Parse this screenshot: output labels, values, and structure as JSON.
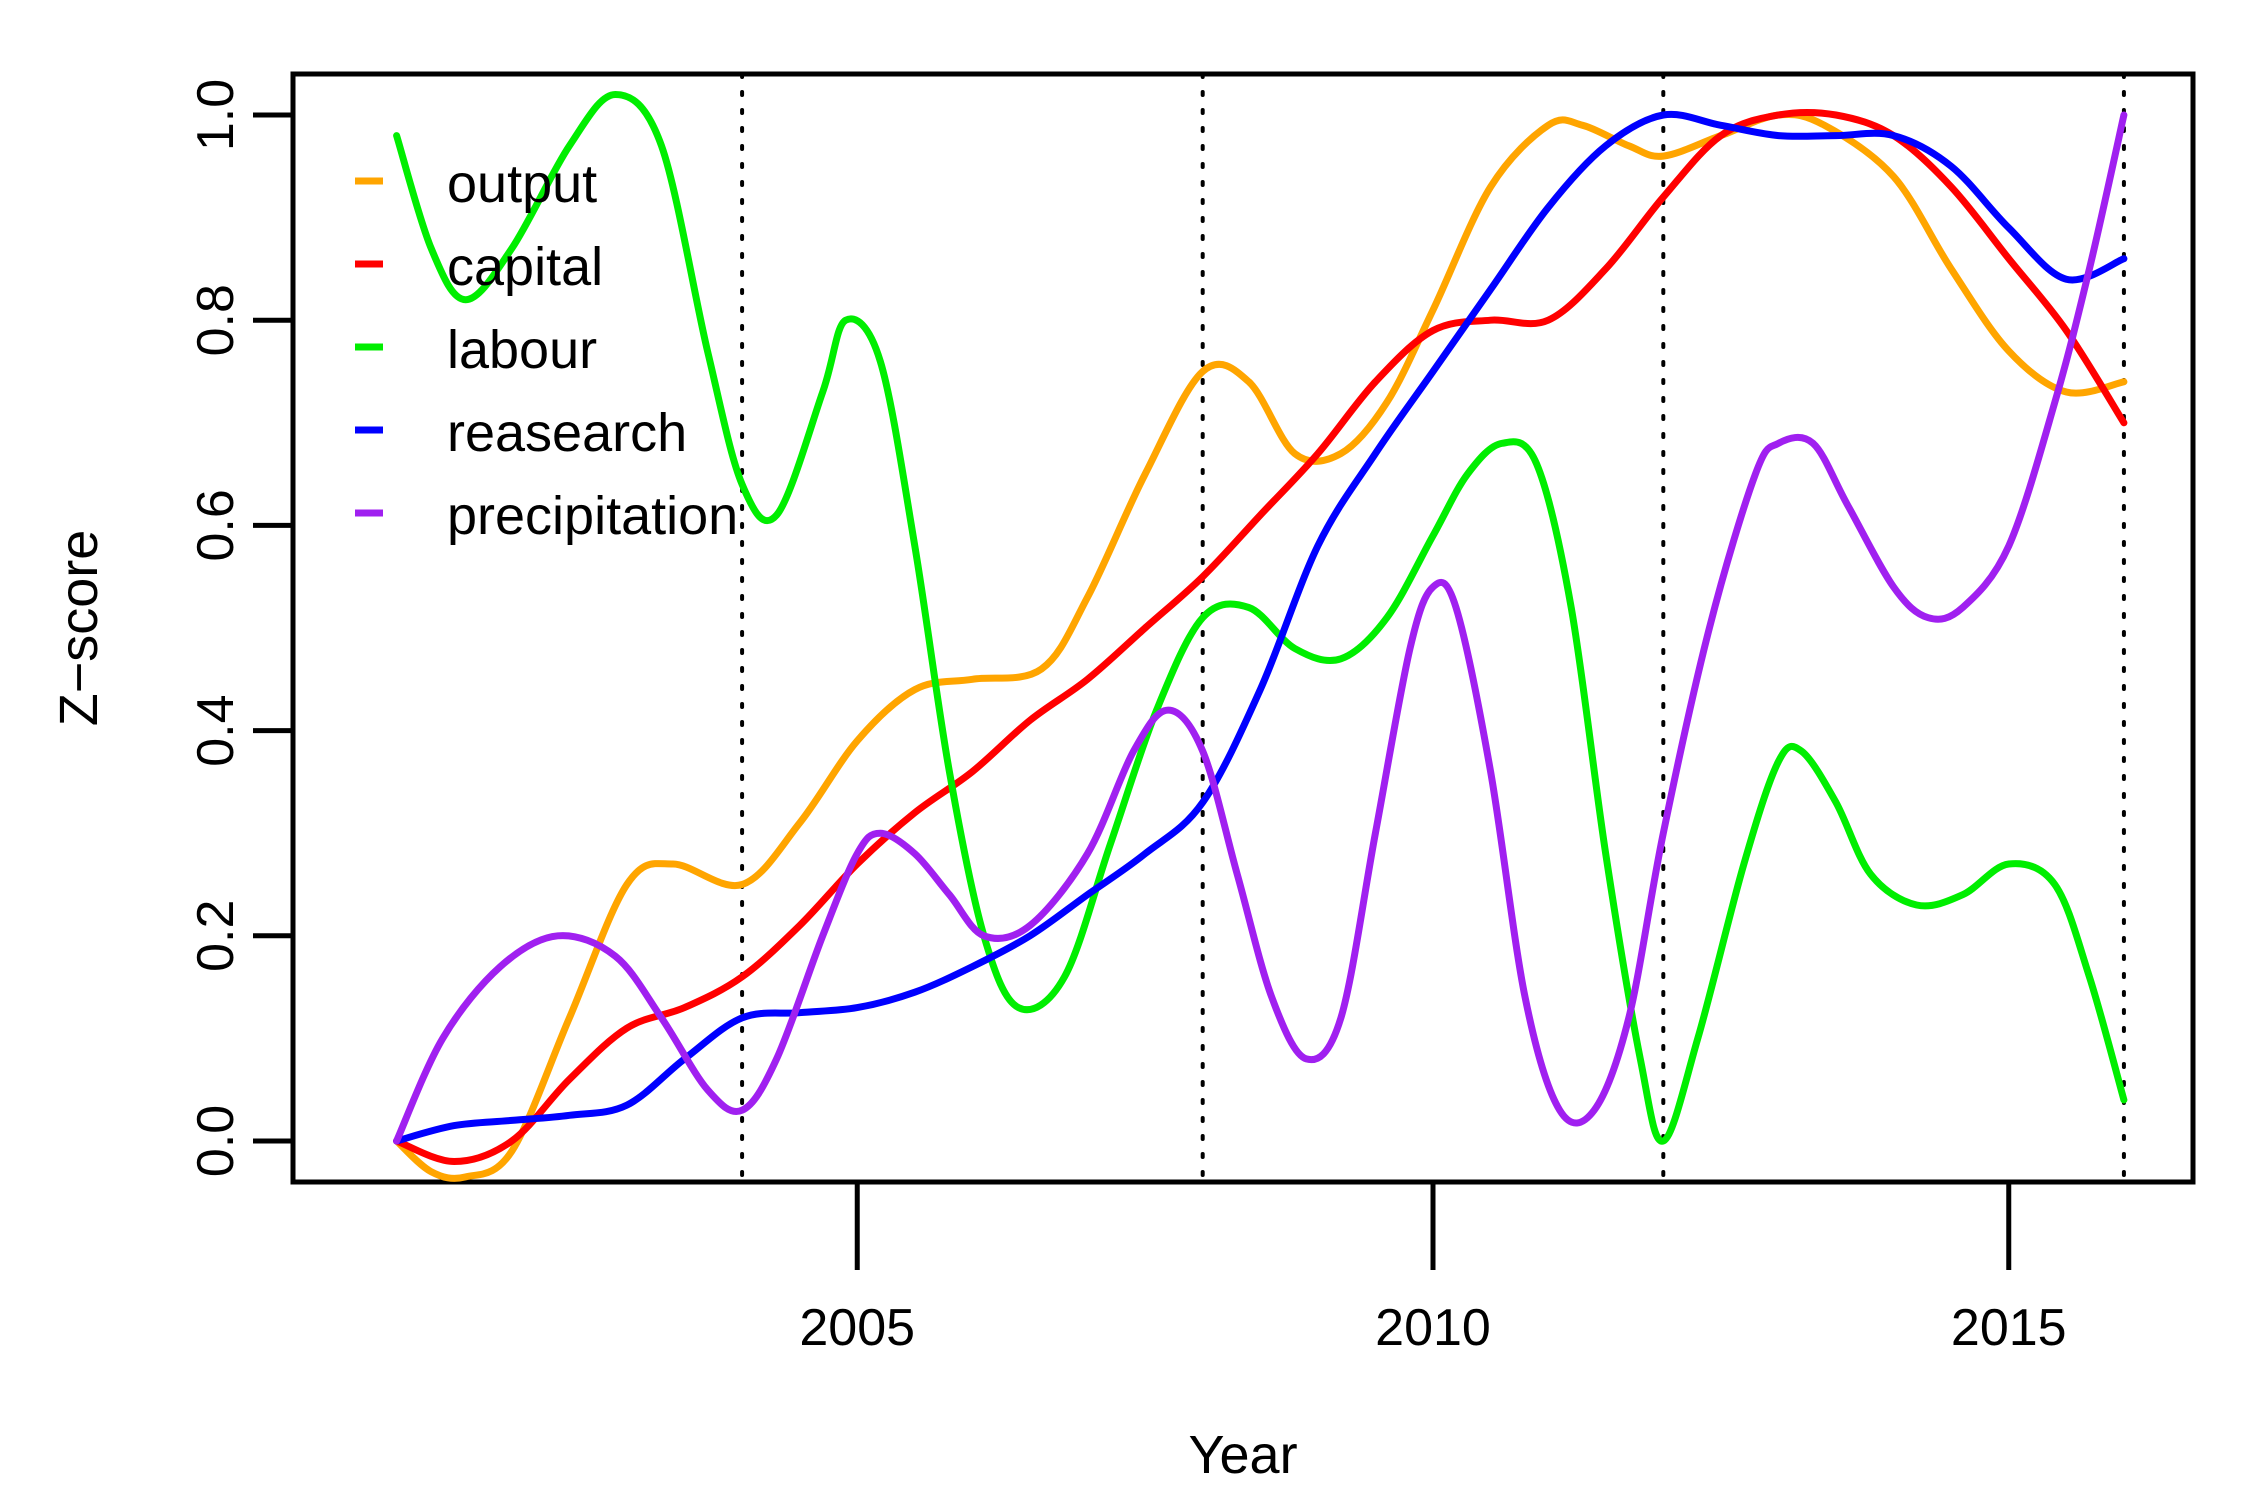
{
  "chart_data": {
    "type": "line",
    "title": "",
    "xlabel": "Year",
    "ylabel": "Z−score",
    "xlim": [
      2000.1,
      2016.6
    ],
    "ylim": [
      -0.04,
      1.04
    ],
    "x_ticks": [
      2005,
      2010,
      2015
    ],
    "x_tick_labels": [
      "2005",
      "2010",
      "2015"
    ],
    "y_ticks": [
      0.0,
      0.2,
      0.4,
      0.6,
      0.8,
      1.0
    ],
    "y_tick_labels": [
      "0.0",
      "0.2",
      "0.4",
      "0.6",
      "0.8",
      "1.0"
    ],
    "vertical_reference_lines": [
      2004,
      2008,
      2012,
      2016
    ],
    "grid": false,
    "legend_position": "top-left",
    "series": [
      {
        "name": "output",
        "color": "#FFA500",
        "x": [
          2001,
          2001.3,
          2001.6,
          2002,
          2002.5,
          2003,
          2003.4,
          2004,
          2004.5,
          2005,
          2005.5,
          2006,
          2006.6,
          2007,
          2007.5,
          2008,
          2008.4,
          2008.8,
          2009.2,
          2009.6,
          2010,
          2010.5,
          2011,
          2011.3,
          2011.7,
          2012,
          2012.5,
          2013,
          2013.4,
          2014,
          2014.5,
          2015,
          2015.5,
          2016
        ],
        "y": [
          0.0,
          -0.03,
          -0.035,
          -0.01,
          0.12,
          0.25,
          0.27,
          0.25,
          0.31,
          0.39,
          0.44,
          0.45,
          0.46,
          0.53,
          0.65,
          0.75,
          0.74,
          0.67,
          0.67,
          0.72,
          0.81,
          0.93,
          0.99,
          0.99,
          0.97,
          0.96,
          0.98,
          1.0,
          0.99,
          0.94,
          0.85,
          0.77,
          0.73,
          0.74
        ]
      },
      {
        "name": "capital",
        "color": "#FF0000",
        "x": [
          2001,
          2001.5,
          2002,
          2002.5,
          2003,
          2003.5,
          2004,
          2004.5,
          2005,
          2005.5,
          2006,
          2006.5,
          2007,
          2007.5,
          2008,
          2008.5,
          2009,
          2009.5,
          2010,
          2010.5,
          2011,
          2011.5,
          2012,
          2012.5,
          2013,
          2013.5,
          2014,
          2014.5,
          2015,
          2015.5,
          2016
        ],
        "y": [
          0.0,
          -0.02,
          0.0,
          0.06,
          0.11,
          0.13,
          0.16,
          0.21,
          0.27,
          0.32,
          0.36,
          0.41,
          0.45,
          0.5,
          0.55,
          0.61,
          0.67,
          0.74,
          0.79,
          0.8,
          0.8,
          0.85,
          0.92,
          0.98,
          1.0,
          1.0,
          0.98,
          0.93,
          0.86,
          0.79,
          0.7
        ]
      },
      {
        "name": "labour",
        "color": "#00EE00",
        "x": [
          2001,
          2001.3,
          2001.6,
          2002,
          2002.5,
          2002.9,
          2003.3,
          2003.7,
          2004,
          2004.3,
          2004.7,
          2004.9,
          2005.2,
          2005.5,
          2005.8,
          2006.1,
          2006.4,
          2006.8,
          2007.2,
          2007.6,
          2008,
          2008.4,
          2008.8,
          2009.2,
          2009.6,
          2010,
          2010.3,
          2010.6,
          2010.9,
          2011.2,
          2011.5,
          2011.8,
          2012,
          2012.3,
          2012.7,
          2013,
          2013.2,
          2013.5,
          2013.8,
          2014.2,
          2014.6,
          2015,
          2015.4,
          2015.7,
          2016
        ],
        "y": [
          0.98,
          0.87,
          0.82,
          0.87,
          0.97,
          1.02,
          0.97,
          0.77,
          0.64,
          0.61,
          0.73,
          0.8,
          0.76,
          0.58,
          0.36,
          0.2,
          0.13,
          0.16,
          0.29,
          0.42,
          0.51,
          0.52,
          0.48,
          0.47,
          0.51,
          0.59,
          0.65,
          0.68,
          0.66,
          0.52,
          0.28,
          0.08,
          0.0,
          0.1,
          0.27,
          0.37,
          0.38,
          0.33,
          0.26,
          0.23,
          0.24,
          0.27,
          0.25,
          0.16,
          0.04
        ]
      },
      {
        "name": "reasearch",
        "color": "#0000FF",
        "x": [
          2001,
          2001.5,
          2002,
          2002.5,
          2003,
          2003.5,
          2004,
          2004.5,
          2005,
          2005.5,
          2006,
          2006.5,
          2007,
          2007.5,
          2008,
          2008.5,
          2009,
          2009.5,
          2010,
          2010.5,
          2011,
          2011.5,
          2012,
          2012.5,
          2013,
          2013.5,
          2014,
          2014.5,
          2015,
          2015.5,
          2016
        ],
        "y": [
          0.0,
          0.015,
          0.02,
          0.025,
          0.035,
          0.08,
          0.12,
          0.125,
          0.13,
          0.145,
          0.17,
          0.2,
          0.24,
          0.28,
          0.33,
          0.44,
          0.58,
          0.67,
          0.75,
          0.83,
          0.91,
          0.97,
          1.0,
          0.99,
          0.98,
          0.98,
          0.98,
          0.95,
          0.89,
          0.84,
          0.86
        ]
      },
      {
        "name": "precipitation",
        "color": "#A020F0",
        "x": [
          2001,
          2001.4,
          2001.9,
          2002.4,
          2002.9,
          2003.3,
          2003.7,
          2004,
          2004.3,
          2004.7,
          2005,
          2005.2,
          2005.5,
          2005.8,
          2006.1,
          2006.5,
          2007,
          2007.4,
          2007.7,
          2008,
          2008.3,
          2008.6,
          2008.9,
          2009.2,
          2009.5,
          2009.8,
          2010,
          2010.2,
          2010.5,
          2010.8,
          2011.1,
          2011.4,
          2011.7,
          2012,
          2012.4,
          2012.8,
          2013,
          2013.3,
          2013.6,
          2014,
          2014.3,
          2014.6,
          2015,
          2015.4,
          2015.7,
          2016
        ],
        "y": [
          0.0,
          0.1,
          0.17,
          0.2,
          0.18,
          0.12,
          0.05,
          0.03,
          0.08,
          0.2,
          0.28,
          0.3,
          0.28,
          0.24,
          0.2,
          0.21,
          0.28,
          0.38,
          0.42,
          0.38,
          0.26,
          0.14,
          0.08,
          0.12,
          0.3,
          0.48,
          0.54,
          0.52,
          0.36,
          0.14,
          0.03,
          0.03,
          0.12,
          0.3,
          0.5,
          0.65,
          0.68,
          0.68,
          0.62,
          0.54,
          0.51,
          0.52,
          0.58,
          0.72,
          0.85,
          1.0
        ]
      }
    ]
  }
}
